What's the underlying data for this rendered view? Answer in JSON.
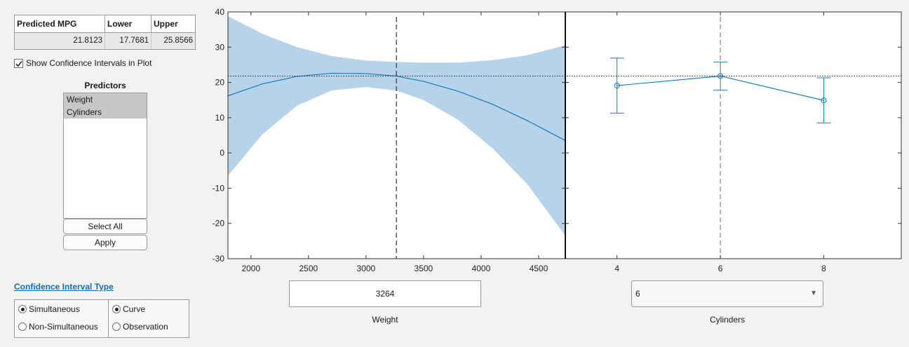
{
  "prediction": {
    "headers": [
      "Predicted MPG",
      "Lower",
      "Upper"
    ],
    "values": [
      "21.8123",
      "17.7681",
      "25.8566"
    ]
  },
  "show_ci_label": "Show Confidence Intervals in Plot",
  "show_ci_checked": true,
  "predictors": {
    "title": "Predictors",
    "items": [
      "Weight",
      "Cylinders"
    ],
    "select_all_label": "Select All",
    "apply_label": "Apply"
  },
  "ci_type": {
    "link_label": "Confidence Interval Type",
    "bound_options": [
      "Simultaneous",
      "Non-Simultaneous"
    ],
    "bound_selected": "Simultaneous",
    "interval_options": [
      "Curve",
      "Observation"
    ],
    "interval_selected": "Curve"
  },
  "colors": {
    "band": "#b7d3ea",
    "line": "#0072bd",
    "errorbar": "#1a7fa0",
    "link": "#0e6fb8"
  },
  "chart_data": [
    {
      "type": "line",
      "title": "",
      "xlabel": "Weight",
      "ylabel": "",
      "xlim": [
        1800,
        4732
      ],
      "ylim": [
        -30,
        40
      ],
      "xticks": [
        2000,
        2500,
        3000,
        3500,
        4000,
        4500
      ],
      "yticks": [
        -30,
        -20,
        -10,
        0,
        10,
        20,
        30,
        40
      ],
      "current_x": 3264,
      "current_y": 21.8123,
      "series": [
        {
          "x": [
            1800,
            2100,
            2400,
            2700,
            3000,
            3264,
            3500,
            3800,
            4100,
            4400,
            4732
          ],
          "y": [
            16.2,
            19.6,
            21.7,
            22.6,
            22.5,
            21.8,
            20.3,
            17.5,
            13.8,
            9.2,
            3.5
          ]
        },
        {
          "x": [
            1800,
            2100,
            2400,
            2700,
            3000,
            3264,
            3500,
            3800,
            4100,
            4400,
            4732
          ],
          "y": [
            38.8,
            33.8,
            30.0,
            27.5,
            26.2,
            25.8,
            25.6,
            25.6,
            26.3,
            27.7,
            30.5
          ]
        },
        {
          "x": [
            1800,
            2100,
            2400,
            2700,
            3000,
            3264,
            3500,
            3800,
            4100,
            4400,
            4732
          ],
          "y": [
            -6.5,
            5.3,
            13.4,
            17.7,
            18.7,
            17.7,
            15.0,
            9.4,
            1.3,
            -8.8,
            -23.5
          ]
        }
      ],
      "input_value": "3264"
    },
    {
      "type": "line",
      "title": "",
      "xlabel": "Cylinders",
      "ylabel": "",
      "xlim": [
        3,
        9.5
      ],
      "ylim": [
        -30,
        40
      ],
      "xticks": [
        4,
        6,
        8
      ],
      "current_x": 6,
      "current_y": 21.8123,
      "series": [
        {
          "x": [
            4,
            6,
            8
          ],
          "y": [
            19.1,
            21.8,
            14.9
          ]
        },
        {
          "x": [
            4,
            6,
            8
          ],
          "y": [
            26.9,
            25.8,
            21.3
          ]
        },
        {
          "x": [
            4,
            6,
            8
          ],
          "y": [
            11.3,
            17.8,
            8.5
          ]
        }
      ],
      "select_value": "6"
    }
  ]
}
